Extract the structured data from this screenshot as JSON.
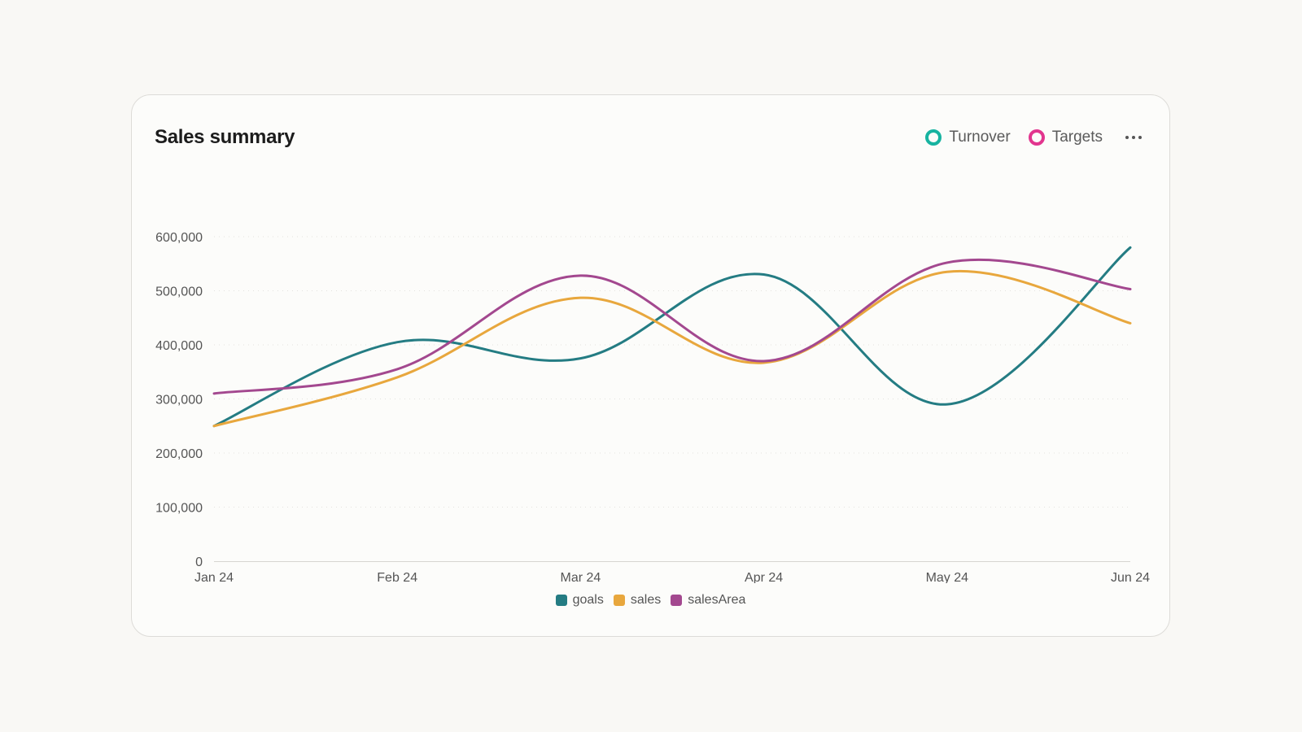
{
  "card": {
    "title": "Sales summary"
  },
  "header_legend": {
    "items": [
      {
        "label": "Turnover",
        "color": "#17b3a0"
      },
      {
        "label": "Targets",
        "color": "#e2358e"
      }
    ],
    "more_icon": "more-horizontal-icon"
  },
  "chart_data": {
    "type": "line",
    "categories": [
      "Jan 24",
      "Feb 24",
      "Mar 24",
      "Apr 24",
      "May 24",
      "Jun 24"
    ],
    "series": [
      {
        "name": "goals",
        "color": "#247c83",
        "values": [
          250000,
          405000,
          375000,
          530000,
          290000,
          580000
        ]
      },
      {
        "name": "sales",
        "color": "#e8a73d",
        "values": [
          250000,
          340000,
          487000,
          367000,
          535000,
          440000
        ]
      },
      {
        "name": "salesArea",
        "color": "#a3488f",
        "values": [
          310000,
          355000,
          528000,
          370000,
          552000,
          503000
        ]
      }
    ],
    "ylim": [
      0,
      600000
    ],
    "yticks": [
      "0",
      "100,000",
      "200,000",
      "300,000",
      "400,000",
      "500,000",
      "600,000"
    ],
    "xlabel": "",
    "ylabel": "",
    "grid": true,
    "curve": "smooth",
    "legend": "bottom-center"
  }
}
